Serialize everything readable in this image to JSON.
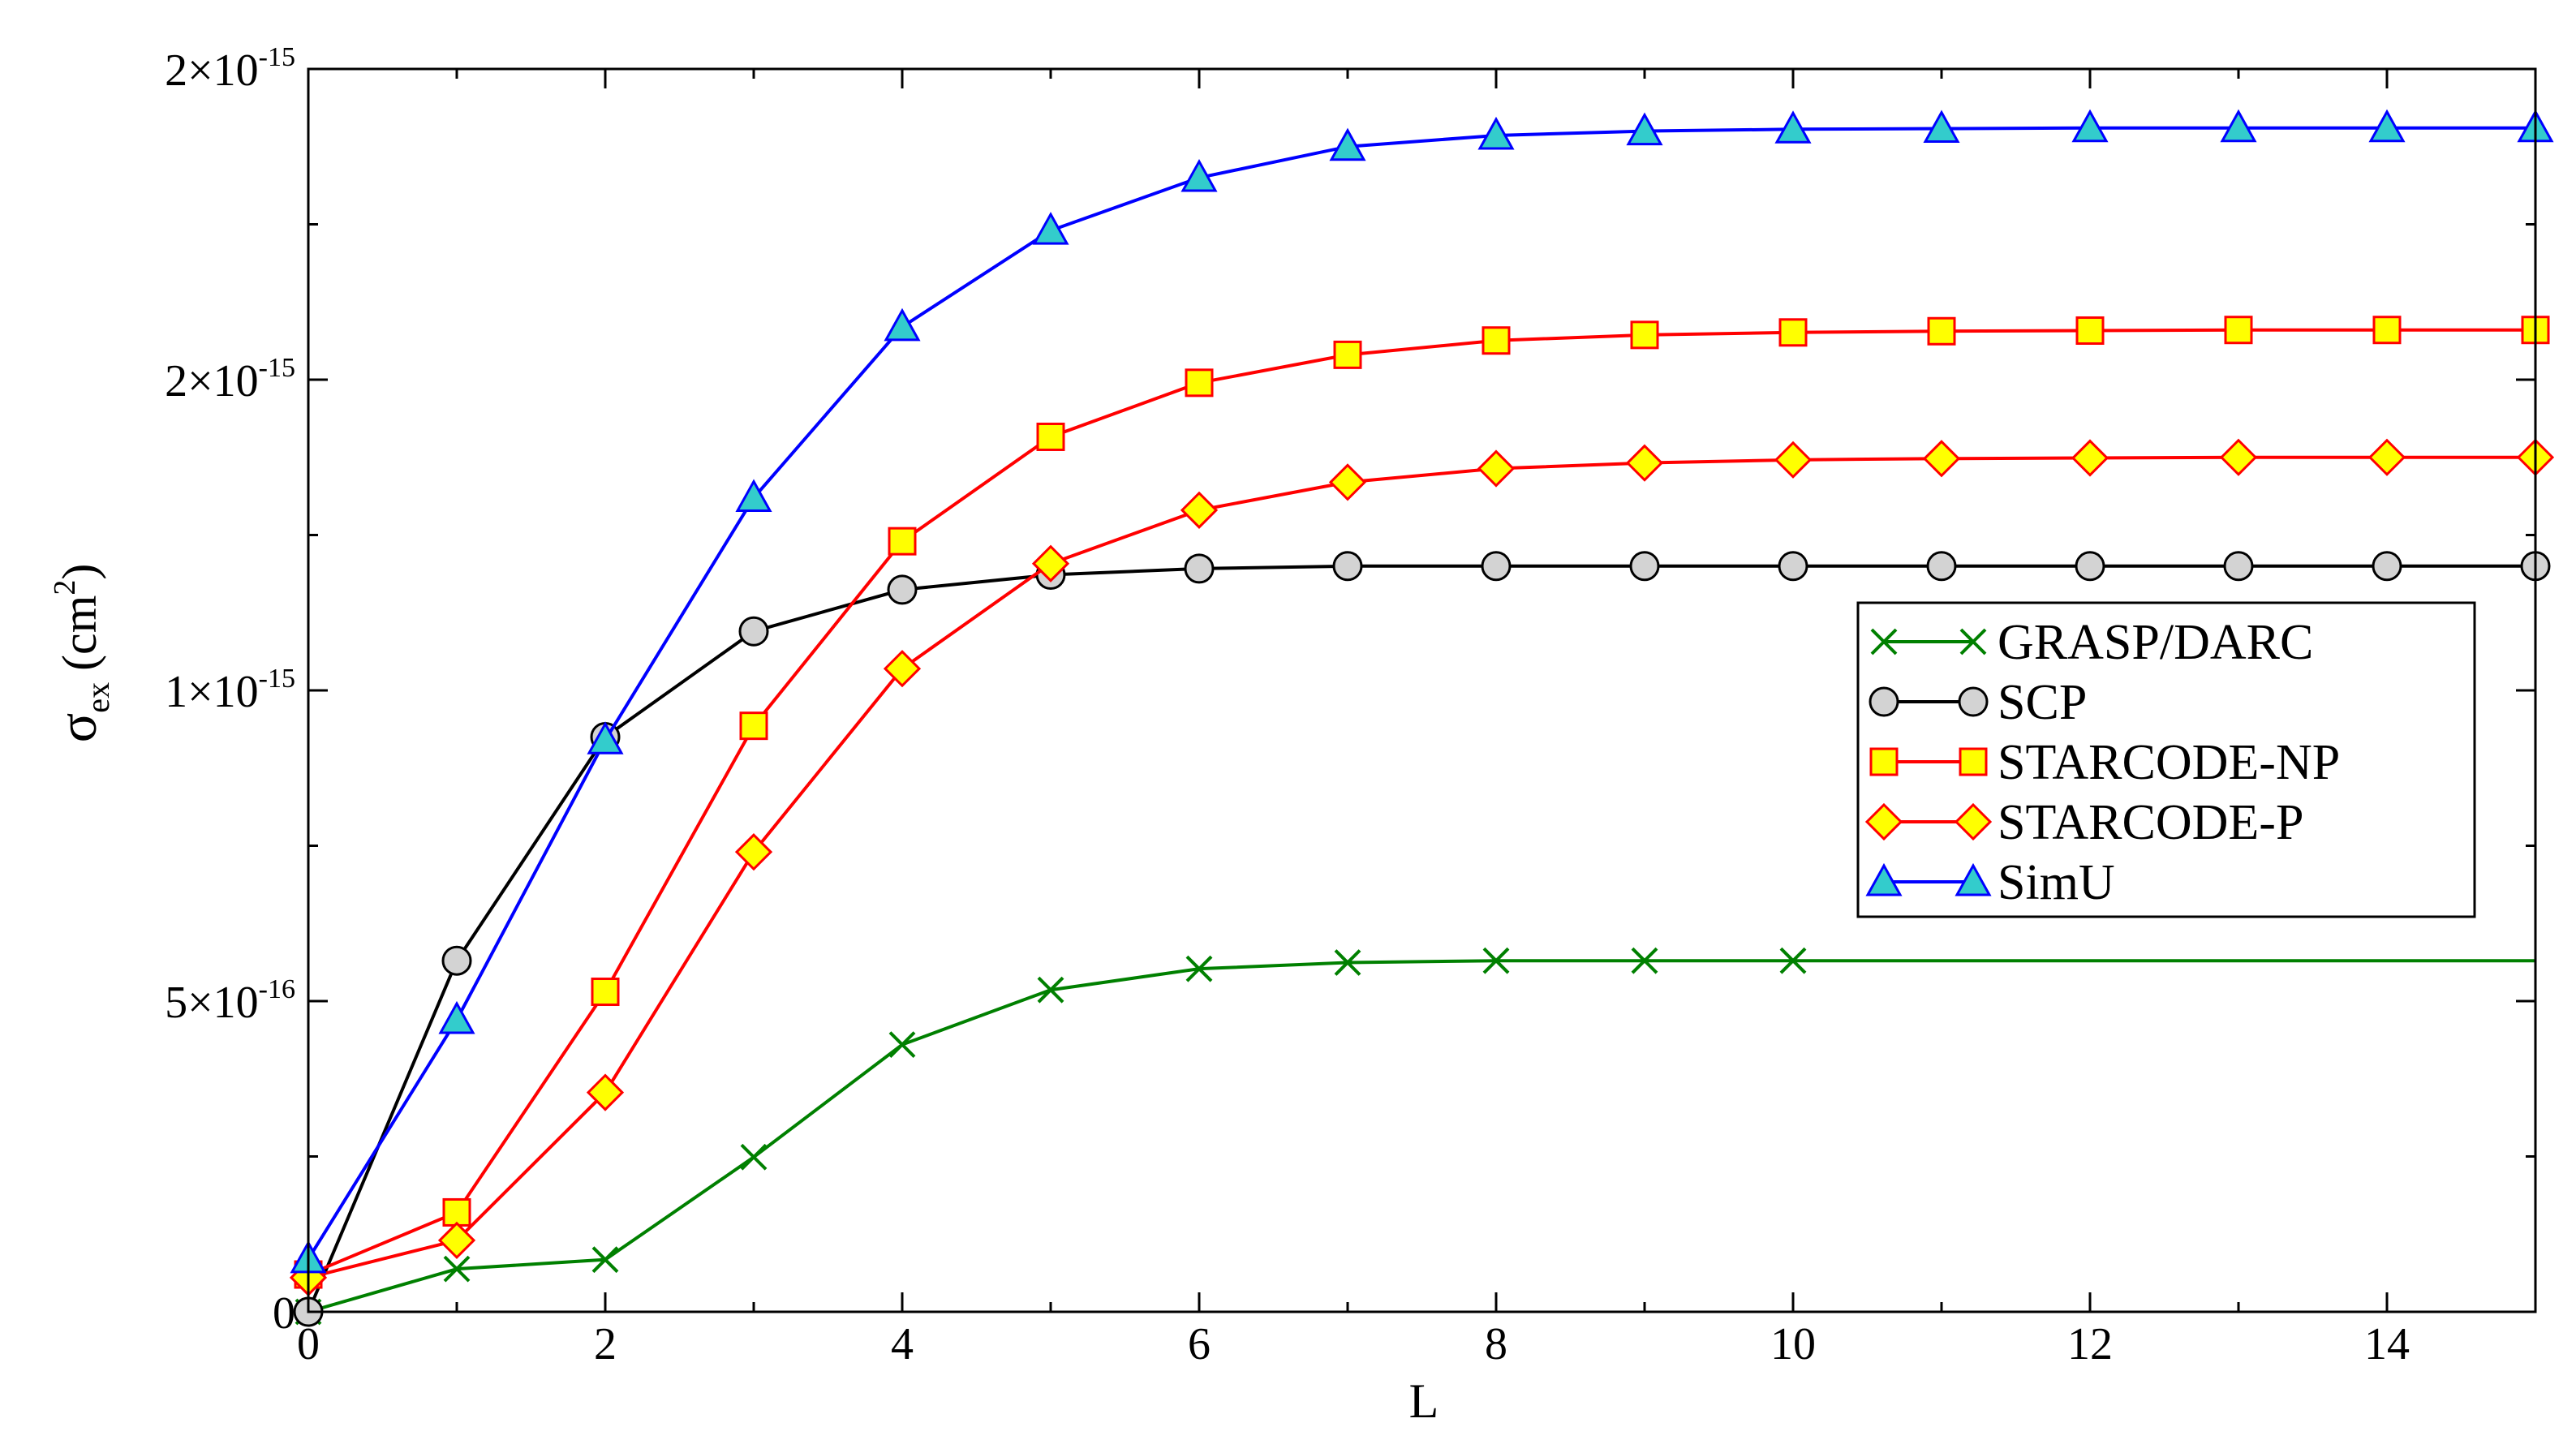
{
  "chart_data": {
    "type": "line",
    "title": "",
    "xlabel": "L",
    "ylabel": {
      "base": "σ",
      "sub": "ex",
      "paren": "(cm",
      "sup": "2",
      "close": ")"
    },
    "xlim": [
      0,
      15
    ],
    "ylim": [
      0,
      2e-15
    ],
    "x_ticks": [
      0,
      2,
      4,
      6,
      8,
      10,
      12,
      14
    ],
    "x_minor_step": 1,
    "y_ticks": [
      {
        "value": 0,
        "mant": "0",
        "exp": ""
      },
      {
        "value": 5e-16,
        "mant": "5×10",
        "exp": "-16"
      },
      {
        "value": 1e-15,
        "mant": "1×10",
        "exp": "-15"
      },
      {
        "value": 1.5e-15,
        "mant": "2×10",
        "exp": "-15"
      },
      {
        "value": 2e-15,
        "mant": "2×10",
        "exp": "-15"
      }
    ],
    "y_minor_step": 2.5e-16,
    "grid": false,
    "legend_position": "center-right",
    "x": [
      0,
      1,
      2,
      3,
      4,
      5,
      6,
      7,
      8,
      9,
      10,
      11,
      12,
      13,
      14,
      15
    ],
    "series": [
      {
        "name": "GRASP/DARC",
        "color": "#008000",
        "marker": "x",
        "fill": "none",
        "marker_stroke": "#008000",
        "x": [
          0,
          1,
          2,
          3,
          4,
          5,
          6,
          7,
          8,
          9,
          10,
          15
        ],
        "values": [
          0,
          6.9e-17,
          8.4e-17,
          2.49e-16,
          4.3e-16,
          5.18e-16,
          5.52e-16,
          5.62e-16,
          5.65e-16,
          5.65e-16,
          5.65e-16,
          5.65e-16
        ],
        "markers": [
          true,
          true,
          true,
          true,
          true,
          true,
          true,
          true,
          true,
          true,
          true,
          false
        ]
      },
      {
        "name": "SCP",
        "color": "#000000",
        "marker": "circle",
        "fill": "#d3d3d3",
        "marker_stroke": "#000000",
        "values": [
          0,
          5.65e-16,
          9.25e-16,
          1.095e-15,
          1.162e-15,
          1.186e-15,
          1.196e-15,
          1.2e-15,
          1.2e-15,
          1.2e-15,
          1.2e-15,
          1.2e-15,
          1.2e-15,
          1.2e-15,
          1.2e-15,
          1.2e-15
        ]
      },
      {
        "name": "STARCODE-NP",
        "color": "#ff0000",
        "marker": "square",
        "fill": "#ffff00",
        "marker_stroke": "#ff0000",
        "values": [
          6e-17,
          1.6e-16,
          5.15e-16,
          9.43e-16,
          1.24e-15,
          1.408e-15,
          1.495e-15,
          1.54e-15,
          1.563e-15,
          1.572e-15,
          1.576e-15,
          1.578e-15,
          1.579e-15,
          1.58e-15,
          1.58e-15,
          1.58e-15
        ]
      },
      {
        "name": "STARCODE-P",
        "color": "#ff0000",
        "marker": "diamond",
        "fill": "#ffff00",
        "marker_stroke": "#ff0000",
        "values": [
          5.5e-17,
          1.15e-16,
          3.53e-16,
          7.4e-16,
          1.035e-15,
          1.204e-15,
          1.29e-15,
          1.335e-15,
          1.357e-15,
          1.366e-15,
          1.371e-15,
          1.373e-15,
          1.374e-15,
          1.375e-15,
          1.375e-15,
          1.375e-15
        ]
      },
      {
        "name": "SimU",
        "color": "#0000ff",
        "marker": "triangle",
        "fill": "#33cccc",
        "marker_stroke": "#0000ff",
        "values": [
          8.5e-17,
          4.7e-16,
          9.2e-16,
          1.31e-15,
          1.585e-15,
          1.74e-15,
          1.825e-15,
          1.875e-15,
          1.893e-15,
          1.9e-15,
          1.903e-15,
          1.904e-15,
          1.905e-15,
          1.905e-15,
          1.905e-15,
          1.905e-15
        ]
      }
    ]
  }
}
